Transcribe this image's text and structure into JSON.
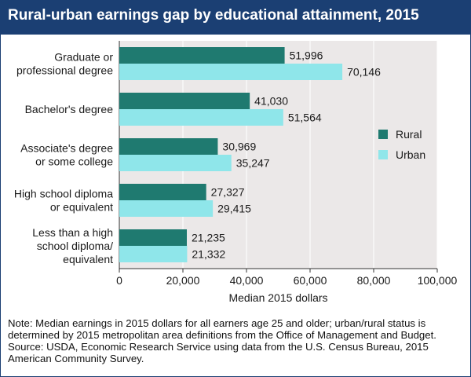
{
  "colors": {
    "title_bar": "#1b3f73",
    "rural": "#1f7a70",
    "urban": "#8fe6ea",
    "plot_bg": "#ebe8e8"
  },
  "chart_data": {
    "type": "bar",
    "orientation": "horizontal",
    "title": "Rural-urban earnings gap by educational attainment, 2015",
    "xlabel": "Median 2015 dollars",
    "ylabel": "",
    "xlim": [
      0,
      100000
    ],
    "xticks": [
      0,
      20000,
      40000,
      60000,
      80000,
      100000
    ],
    "xtick_labels": [
      "0",
      "20,000",
      "40,000",
      "60,000",
      "80,000",
      "100,000"
    ],
    "grid": true,
    "legend_position": "right",
    "categories": [
      [
        "Graduate or",
        "professional degree"
      ],
      [
        "Bachelor's degree"
      ],
      [
        "Associate's degree",
        "or some college"
      ],
      [
        "High school diploma",
        "or equivalent"
      ],
      [
        "Less than a high",
        "school diploma/",
        "equivalent"
      ]
    ],
    "series": [
      {
        "name": "Rural",
        "color": "#1f7a70",
        "values": [
          51996,
          41030,
          30969,
          27327,
          21235
        ],
        "labels": [
          "51,996",
          "41,030",
          "30,969",
          "27,327",
          "21,235"
        ]
      },
      {
        "name": "Urban",
        "color": "#8fe6ea",
        "values": [
          70146,
          51564,
          35247,
          29415,
          21332
        ],
        "labels": [
          "70,146",
          "51,564",
          "35,247",
          "29,415",
          "21,332"
        ]
      }
    ]
  },
  "notes": {
    "note": "Note: Median earnings in 2015 dollars for all earners age 25 and older; urban/rural status is determined by 2015 metropolitan area definitions from the Office of Management and Budget.",
    "source": "Source: USDA, Economic Research Service using data from the U.S. Census Bureau, 2015 American Community Survey."
  }
}
